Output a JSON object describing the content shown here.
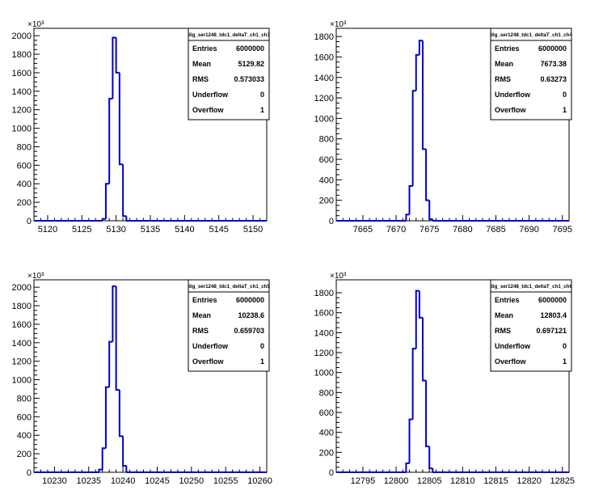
{
  "chart_data": [
    {
      "type": "histogram",
      "title": "dig_ser1248_tdc1_deltaT_ch1_ch3",
      "xlim": [
        5118,
        5152
      ],
      "ylim": [
        0,
        2080
      ],
      "y_exponent_label": "×10³",
      "xticks": [
        5120,
        5125,
        5130,
        5135,
        5140,
        5145,
        5150
      ],
      "yticks": [
        0,
        200,
        400,
        600,
        800,
        1000,
        1200,
        1400,
        1600,
        1800,
        2000
      ],
      "bins": [
        {
          "x0": 5128.0,
          "x1": 5128.5,
          "y": 20
        },
        {
          "x0": 5128.5,
          "x1": 5129.0,
          "y": 400
        },
        {
          "x0": 5129.0,
          "x1": 5129.5,
          "y": 1320
        },
        {
          "x0": 5129.5,
          "x1": 5130.0,
          "y": 1980
        },
        {
          "x0": 5130.0,
          "x1": 5130.5,
          "y": 1600
        },
        {
          "x0": 5130.5,
          "x1": 5131.0,
          "y": 610
        },
        {
          "x0": 5131.0,
          "x1": 5131.5,
          "y": 50
        }
      ],
      "stats": [
        {
          "label": "Entries",
          "value": "6000000"
        },
        {
          "label": "Mean",
          "value": "5129.82"
        },
        {
          "label": "RMS",
          "value": "0.573033"
        },
        {
          "label": "Underflow",
          "value": "0"
        },
        {
          "label": "Overflow",
          "value": "1"
        }
      ]
    },
    {
      "type": "histogram",
      "title": "dig_ser1248_tdc1_deltaT_ch1_ch4",
      "xlim": [
        7661,
        7696
      ],
      "ylim": [
        0,
        1880
      ],
      "y_exponent_label": "×10³",
      "xticks": [
        7665,
        7670,
        7675,
        7680,
        7685,
        7690,
        7695
      ],
      "yticks": [
        0,
        200,
        400,
        600,
        800,
        1000,
        1200,
        1400,
        1600,
        1800
      ],
      "bins": [
        {
          "x0": 7671.5,
          "x1": 7672.0,
          "y": 60
        },
        {
          "x0": 7672.0,
          "x1": 7672.5,
          "y": 340
        },
        {
          "x0": 7672.5,
          "x1": 7673.0,
          "y": 1270
        },
        {
          "x0": 7673.0,
          "x1": 7673.5,
          "y": 1620
        },
        {
          "x0": 7673.5,
          "x1": 7674.0,
          "y": 1760
        },
        {
          "x0": 7674.0,
          "x1": 7674.5,
          "y": 700
        },
        {
          "x0": 7674.5,
          "x1": 7675.0,
          "y": 200
        },
        {
          "x0": 7675.0,
          "x1": 7675.5,
          "y": 15
        }
      ],
      "stats": [
        {
          "label": "Entries",
          "value": "6000000"
        },
        {
          "label": "Mean",
          "value": "7673.38"
        },
        {
          "label": "RMS",
          "value": "0.63273"
        },
        {
          "label": "Underflow",
          "value": "0"
        },
        {
          "label": "Overflow",
          "value": "1"
        }
      ]
    },
    {
      "type": "histogram",
      "title": "dig_ser1248_tdc1_deltaT_ch1_ch5",
      "xlim": [
        10227,
        10261
      ],
      "ylim": [
        0,
        2080
      ],
      "y_exponent_label": "×10³",
      "xticks": [
        10230,
        10235,
        10240,
        10245,
        10250,
        10255,
        10260
      ],
      "yticks": [
        0,
        200,
        400,
        600,
        800,
        1000,
        1200,
        1400,
        1600,
        1800,
        2000
      ],
      "bins": [
        {
          "x0": 10236.5,
          "x1": 10237.0,
          "y": 30
        },
        {
          "x0": 10237.0,
          "x1": 10237.5,
          "y": 260
        },
        {
          "x0": 10237.5,
          "x1": 10238.0,
          "y": 920
        },
        {
          "x0": 10238.0,
          "x1": 10238.5,
          "y": 1410
        },
        {
          "x0": 10238.5,
          "x1": 10239.0,
          "y": 2010
        },
        {
          "x0": 10239.0,
          "x1": 10239.5,
          "y": 890
        },
        {
          "x0": 10239.5,
          "x1": 10240.0,
          "y": 390
        },
        {
          "x0": 10240.0,
          "x1": 10240.5,
          "y": 70
        }
      ],
      "stats": [
        {
          "label": "Entries",
          "value": "6000000"
        },
        {
          "label": "Mean",
          "value": "10238.6"
        },
        {
          "label": "RMS",
          "value": "0.659703"
        },
        {
          "label": "Underflow",
          "value": "0"
        },
        {
          "label": "Overflow",
          "value": "1"
        }
      ]
    },
    {
      "type": "histogram",
      "title": "dig_ser1248_tdc1_deltaT_ch1_ch6",
      "xlim": [
        12791,
        12826
      ],
      "ylim": [
        0,
        1930
      ],
      "y_exponent_label": "×10³",
      "xticks": [
        12795,
        12800,
        12805,
        12810,
        12815,
        12820,
        12825
      ],
      "yticks": [
        0,
        200,
        400,
        600,
        800,
        1000,
        1200,
        1400,
        1600,
        1800
      ],
      "bins": [
        {
          "x0": 12801.5,
          "x1": 12802.0,
          "y": 90
        },
        {
          "x0": 12802.0,
          "x1": 12802.5,
          "y": 530
        },
        {
          "x0": 12802.5,
          "x1": 12803.0,
          "y": 1240
        },
        {
          "x0": 12803.0,
          "x1": 12803.5,
          "y": 1820
        },
        {
          "x0": 12803.5,
          "x1": 12804.0,
          "y": 1550
        },
        {
          "x0": 12804.0,
          "x1": 12804.5,
          "y": 920
        },
        {
          "x0": 12804.5,
          "x1": 12805.0,
          "y": 260
        },
        {
          "x0": 12805.0,
          "x1": 12805.5,
          "y": 40
        }
      ],
      "stats": [
        {
          "label": "Entries",
          "value": "6000000"
        },
        {
          "label": "Mean",
          "value": "12803.4"
        },
        {
          "label": "RMS",
          "value": "0.697121"
        },
        {
          "label": "Underflow",
          "value": "0"
        },
        {
          "label": "Overflow",
          "value": "1"
        }
      ]
    }
  ],
  "colors": {
    "histogram_line": "#0000cc",
    "axis": "#000000",
    "background": "#ffffff"
  }
}
